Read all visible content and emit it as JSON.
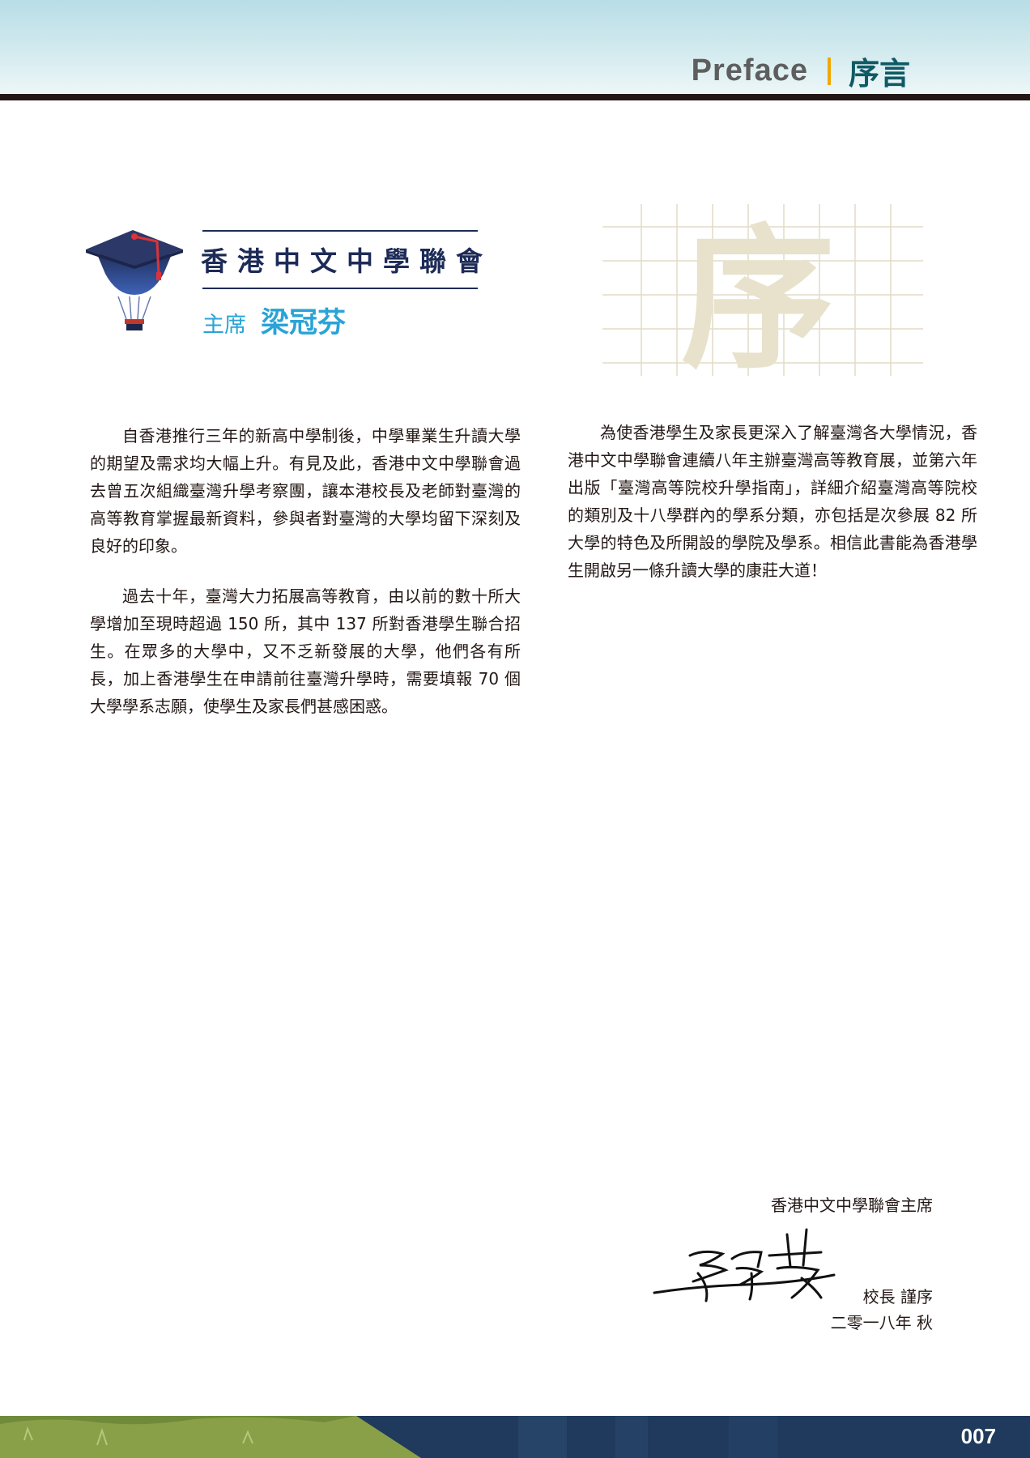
{
  "header": {
    "title_en": "Preface",
    "title_zh": "序言"
  },
  "association": {
    "name": "香港中文中學聯會",
    "chair_title": "主席",
    "chair_name": "梁冠芬"
  },
  "decor": {
    "grid_character": "序"
  },
  "body": {
    "paragraphs": [
      "自香港推行三年的新高中學制後，中學畢業生升讀大學的期望及需求均大幅上升。有見及此，香港中文中學聯會過去曾五次組織臺灣升學考察團，讓本港校長及老師對臺灣的高等教育掌握最新資料，參與者對臺灣的大學均留下深刻及良好的印象。",
      "過去十年，臺灣大力拓展高等教育，由以前的數十所大學增加至現時超過 150 所，其中 137 所對香港學生聯合招生。在眾多的大學中，又不乏新發展的大學，他們各有所長，加上香港學生在申請前往臺灣升學時，需要填報 70 個大學學系志願，使學生及家長們甚感困惑。",
      "為使香港學生及家長更深入了解臺灣各大學情況，香港中文中學聯會連續八年主辦臺灣高等教育展，並第六年出版「臺灣高等院校升學指南」，詳細介紹臺灣高等院校的類別及十八學群內的學系分類，亦包括是次參展 82 所大學的特色及所開設的學院及學系。相信此書能為香港學生開啟另一條升讀大學的康莊大道！"
    ]
  },
  "signature": {
    "org": "香港中文中學聯會主席",
    "handwritten": "梁冠芬",
    "role": "校長 謹序",
    "date": "二零一八年  秋"
  },
  "footer": {
    "page_number": "007"
  },
  "colors": {
    "header_bar": "#231815",
    "title_en": "#5e5e5e",
    "title_zh": "#0f5a64",
    "title_separator": "#f0a800",
    "association_navy": "#1d2b57",
    "chair_blue": "#2aa3d6",
    "decor_char": "#e8e2cc",
    "footer_navy": "#1f3a5c",
    "footer_green": "#8aa048"
  }
}
